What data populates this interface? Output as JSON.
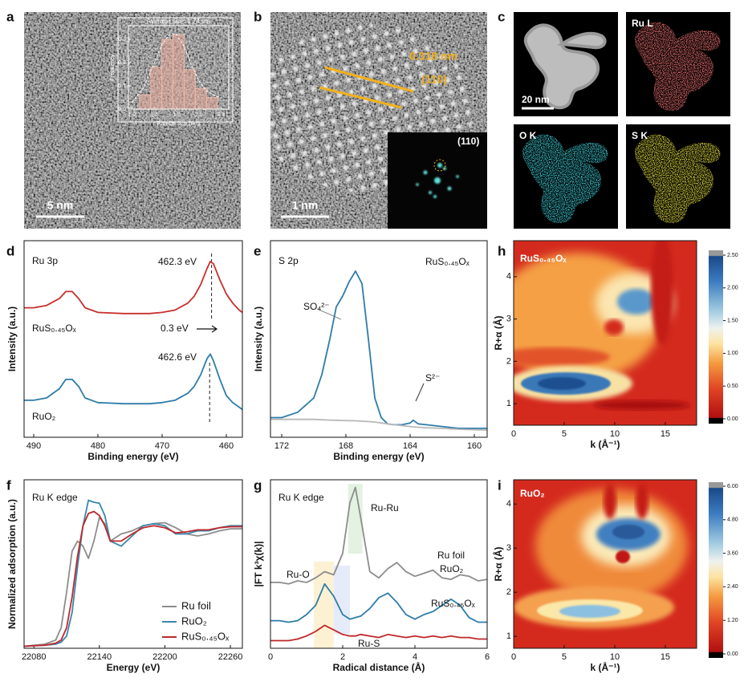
{
  "panel_labels": [
    "a",
    "b",
    "c",
    "d",
    "e",
    "f",
    "g",
    "h",
    "i"
  ],
  "images": {
    "a": {
      "scale_bar": "5 nm"
    },
    "b": {
      "scale_bar": "1 nm",
      "d_spacing": "0.318 nm",
      "plane": "(110)",
      "fft_plane": "(110)"
    },
    "c": {
      "scale_bar": "20 nm",
      "maps": [
        "Ru L",
        "O K",
        "S K"
      ]
    }
  },
  "chart_data": [
    {
      "type": "histogram",
      "title": "Average size: 1.74 nm",
      "xlabel": "Particle size (nm)",
      "ylabel": "Frequency",
      "bins": [
        1.3,
        1.45,
        1.6,
        1.75,
        1.9,
        2.05,
        2.2,
        2.35
      ],
      "counts": [
        0.06,
        0.18,
        0.3,
        0.32,
        0.17,
        0.09,
        0.05
      ],
      "color": "#e8a898",
      "fit": {
        "x": [
          1.2,
          1.35,
          1.5,
          1.6,
          1.7,
          1.75,
          1.8,
          1.9,
          2.0,
          2.1,
          2.2,
          2.3,
          2.4
        ],
        "values": [
          0.03,
          0.09,
          0.2,
          0.28,
          0.32,
          0.325,
          0.32,
          0.27,
          0.19,
          0.12,
          0.08,
          0.06,
          0.05
        ]
      },
      "xlim": [
        1.15,
        2.5
      ],
      "xticks": [
        1.2,
        1.5,
        1.8,
        2.1,
        2.4
      ],
      "ylim": [
        0,
        0.36
      ],
      "yticks": [
        {
          "value": 0,
          "label": "0.0"
        },
        0.1,
        0.2,
        0.3
      ]
    },
    {
      "type": "line",
      "annotations": [
        "Ru 3p",
        "462.3 eV",
        "0.3 eV",
        "462.6 eV"
      ],
      "markers": [
        462.3,
        462.6
      ],
      "xlabel": "Binding energy (eV)",
      "ylabel": "Intensity (a.u.)",
      "xlim": [
        491.5,
        457.5
      ],
      "xticks": [
        490,
        480,
        470,
        460
      ],
      "ylim": [
        1,
        9.5
      ],
      "x": [
        491.5,
        490,
        488,
        486,
        485,
        484,
        483,
        482,
        480,
        476,
        472,
        470,
        468,
        466,
        465,
        464,
        463,
        462.5,
        462,
        461,
        460,
        459,
        458,
        457.5
      ],
      "series": [
        {
          "name": "RuS₀.₄₅Oₓ",
          "color": "#c8302c",
          "values": [
            6.6,
            6.6,
            6.7,
            7.0,
            7.3,
            7.3,
            7.0,
            6.6,
            6.4,
            6.35,
            6.35,
            6.4,
            6.5,
            6.8,
            7.1,
            7.6,
            8.3,
            8.6,
            8.5,
            7.8,
            7.2,
            6.8,
            6.5,
            6.4
          ]
        },
        {
          "name": "RuO₂",
          "color": "#2d7ca8",
          "values": [
            2.6,
            2.6,
            2.7,
            3.1,
            3.5,
            3.5,
            3.2,
            2.7,
            2.5,
            2.45,
            2.45,
            2.5,
            2.6,
            2.9,
            3.2,
            3.7,
            4.4,
            4.6,
            4.3,
            3.5,
            2.8,
            2.5,
            2.3,
            2.2
          ]
        }
      ]
    },
    {
      "type": "line",
      "annotations": [
        "S 2p",
        "RuS₀.₄₅Oₓ",
        "SO₄²⁻",
        "S²⁻"
      ],
      "xlabel": "Binding energy (eV)",
      "ylabel": "Intensity (a.u.)",
      "xlim": [
        172.7,
        159.2
      ],
      "xticks": [
        172,
        168,
        164,
        160
      ],
      "ylim": [
        0,
        11
      ],
      "x": [
        172.7,
        172,
        171,
        170,
        169.5,
        169,
        168.6,
        168.2,
        167.8,
        167.4,
        167,
        166.6,
        166.2,
        165.8,
        165.4,
        165,
        164.5,
        164,
        163.8,
        163.5,
        163,
        162,
        161,
        160,
        159.2
      ],
      "series": [
        {
          "color": "#2d7ca8",
          "values": [
            1.1,
            1.1,
            1.4,
            2.2,
            3.5,
            5.5,
            7.3,
            7.9,
            8.7,
            9.3,
            8.6,
            5.5,
            2.2,
            1.1,
            0.75,
            0.7,
            0.7,
            0.8,
            0.95,
            0.75,
            0.7,
            0.6,
            0.5,
            0.5,
            0.5
          ]
        },
        {
          "color": "#b8b8b8",
          "values": [
            1.0,
            1.0,
            1.0,
            1.0,
            0.98,
            0.96,
            0.95,
            0.94,
            0.93,
            0.92,
            0.9,
            0.88,
            0.85,
            0.8,
            0.75,
            0.7,
            0.65,
            0.6,
            0.58,
            0.56,
            0.53,
            0.5,
            0.45,
            0.42,
            0.4
          ]
        }
      ]
    },
    {
      "type": "heatmap",
      "label": "RuS₀.₄₅Oₓ",
      "xlabel": "k (Å⁻¹)",
      "ylabel": "R+α (Å)",
      "xlim": [
        0,
        18.1
      ],
      "xticks": [
        0,
        5,
        10,
        15
      ],
      "ylim": [
        0.49,
        4.85
      ],
      "yticks": [
        1,
        2,
        3,
        4
      ],
      "colorbar": {
        "lim": [
          0,
          2.5
        ],
        "ticks": [
          {
            "value": 0,
            "label": "0.00"
          },
          {
            "value": 0.5,
            "label": "0.50"
          },
          {
            "value": 1,
            "label": "1.00"
          },
          {
            "value": 1.5,
            "label": "1.50"
          },
          {
            "value": 2,
            "label": "2.00"
          },
          {
            "value": 2.5,
            "label": "2.50"
          }
        ]
      }
    },
    {
      "type": "line",
      "annotations": [
        "Ru K edge"
      ],
      "legend": "lower right",
      "xlabel": "Energy (eV)",
      "ylabel": "Normalized adsorption (a.u.)",
      "xlim": [
        22071,
        22271
      ],
      "xticks": [
        22080,
        22140,
        22200,
        22260
      ],
      "ylim": [
        0,
        1.65
      ],
      "x": [
        22071,
        22090,
        22100,
        22105,
        22110,
        22115,
        22120,
        22125,
        22130,
        22135,
        22140,
        22145,
        22150,
        22160,
        22170,
        22180,
        22190,
        22200,
        22210,
        22220,
        22230,
        22240,
        22250,
        22260,
        22271
      ],
      "series": [
        {
          "name": "Ru foil",
          "color": "#8c8c8c",
          "values": [
            0.02,
            0.04,
            0.08,
            0.2,
            0.55,
            0.95,
            1.05,
            1.0,
            0.88,
            1.05,
            1.28,
            1.22,
            1.05,
            1.12,
            1.15,
            1.2,
            1.22,
            1.23,
            1.18,
            1.12,
            1.1,
            1.12,
            1.15,
            1.17,
            1.17
          ]
        },
        {
          "name": "RuO₂",
          "color": "#3a86ae",
          "values": [
            0.02,
            0.03,
            0.04,
            0.06,
            0.12,
            0.35,
            0.8,
            1.2,
            1.45,
            1.43,
            1.42,
            1.3,
            1.05,
            1.0,
            1.1,
            1.2,
            1.22,
            1.2,
            1.12,
            1.12,
            1.15,
            1.15,
            1.18,
            1.2,
            1.2
          ]
        },
        {
          "name": "RuS₀.₄₅Oₓ",
          "color": "#c0282a",
          "values": [
            0.02,
            0.03,
            0.05,
            0.08,
            0.2,
            0.5,
            0.9,
            1.2,
            1.32,
            1.34,
            1.3,
            1.2,
            1.05,
            1.05,
            1.12,
            1.18,
            1.2,
            1.18,
            1.13,
            1.14,
            1.16,
            1.16,
            1.18,
            1.19,
            1.19
          ]
        }
      ]
    },
    {
      "type": "line",
      "annotations": [
        "Ru K edge",
        "Ru-Ru",
        "Ru-O",
        "Ru-S"
      ],
      "bands": [
        {
          "x": [
            1.2,
            1.75
          ],
          "color": "#fbeec8"
        },
        {
          "x": [
            1.75,
            2.2
          ],
          "color": "#dfe6f7"
        },
        {
          "x": [
            2.15,
            2.55
          ],
          "color": "#dcefd9"
        }
      ],
      "xlabel": "Radical distance (Å)",
      "ylabel": "|FT k³χ(k)|",
      "xlim": [
        0,
        6
      ],
      "xticks": [
        0,
        2,
        4,
        6
      ],
      "ylim": [
        0,
        11
      ],
      "x": [
        0,
        0.25,
        0.5,
        0.75,
        1,
        1.25,
        1.5,
        1.75,
        2,
        2.2,
        2.35,
        2.5,
        2.75,
        3,
        3.25,
        3.5,
        3.75,
        4,
        4.25,
        4.5,
        4.75,
        5,
        5.25,
        5.5,
        5.75,
        6
      ],
      "series": [
        {
          "name": "Ru foil",
          "color": "#8c8c8c",
          "values": [
            4.3,
            4.3,
            4.2,
            4.4,
            4.3,
            4.6,
            5.0,
            4.8,
            6.2,
            9.5,
            10.5,
            8.5,
            5.0,
            4.6,
            5.2,
            5.6,
            5.0,
            4.7,
            4.9,
            5.1,
            4.6,
            4.5,
            4.8,
            4.7,
            4.4,
            4.5
          ]
        },
        {
          "name": "RuO₂",
          "color": "#2d7ca8",
          "values": [
            1.8,
            1.8,
            1.7,
            1.8,
            2.2,
            2.8,
            4.2,
            3.4,
            2.2,
            1.9,
            2.0,
            2.1,
            2.6,
            3.3,
            3.6,
            3.0,
            2.2,
            1.9,
            2.2,
            2.4,
            2.8,
            3.2,
            2.8,
            2.0,
            1.7,
            1.7
          ]
        },
        {
          "name": "RuS₀.₄₅Oₓ",
          "color": "#c0282a",
          "values": [
            0.5,
            0.5,
            0.5,
            0.6,
            0.8,
            1.1,
            1.5,
            1.2,
            0.9,
            0.8,
            0.8,
            0.9,
            0.8,
            0.7,
            0.9,
            0.8,
            0.7,
            0.8,
            0.7,
            0.8,
            0.7,
            0.8,
            0.7,
            0.7,
            0.6,
            0.6
          ]
        }
      ]
    },
    {
      "type": "heatmap",
      "label": "RuO₂",
      "xlabel": "k (Å⁻¹)",
      "ylabel": "R+α (Å)",
      "xlim": [
        0,
        18.1
      ],
      "xticks": [
        0,
        5,
        10,
        15
      ],
      "ylim": [
        0.73,
        4.55
      ],
      "yticks": [
        1,
        2,
        3,
        4
      ],
      "colorbar": {
        "lim": [
          0,
          6
        ],
        "ticks": [
          {
            "value": 0,
            "label": "0.00"
          },
          {
            "value": 1.2,
            "label": "1.20"
          },
          {
            "value": 2.4,
            "label": "2.40"
          },
          {
            "value": 3.6,
            "label": "3.60"
          },
          {
            "value": 4.8,
            "label": "4.80"
          },
          {
            "value": 6,
            "label": "6.00"
          }
        ]
      }
    }
  ]
}
